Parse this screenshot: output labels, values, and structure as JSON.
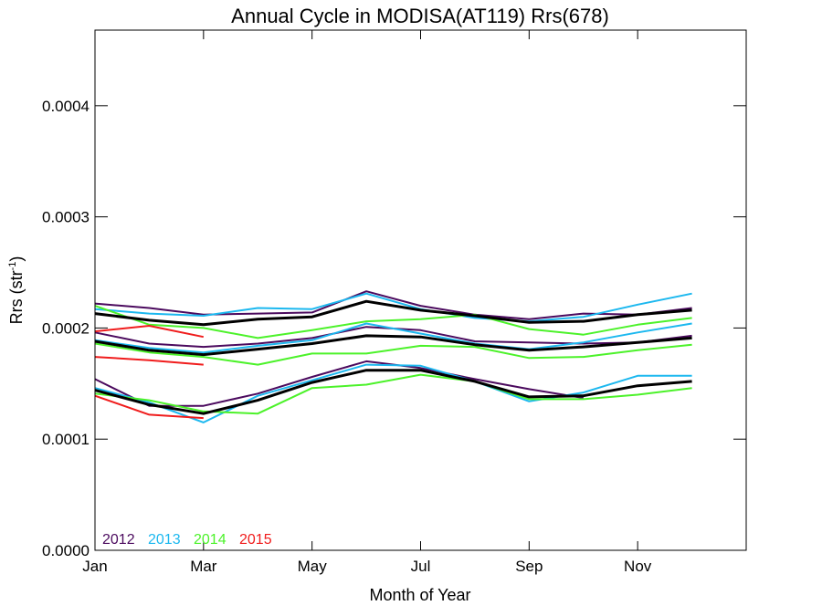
{
  "chart_data": {
    "type": "line",
    "title": "Annual Cycle in MODISA(AT119) Rrs(678)",
    "xlabel": "Month of Year",
    "ylabel": "Rrs (str",
    "ylabel_sup": "-1",
    "ylabel_close": ")",
    "xlim": [
      1,
      13
    ],
    "ylim": [
      0.0,
      0.000468
    ],
    "xticks": [
      {
        "x": 1,
        "label": "Jan"
      },
      {
        "x": 3,
        "label": "Mar"
      },
      {
        "x": 5,
        "label": "May"
      },
      {
        "x": 7,
        "label": "Jul"
      },
      {
        "x": 9,
        "label": "Sep"
      },
      {
        "x": 11,
        "label": "Nov"
      }
    ],
    "yticks": [
      {
        "y": 0.0,
        "label": "0.0000"
      },
      {
        "y": 0.0001,
        "label": "0.0001"
      },
      {
        "y": 0.0002,
        "label": "0.0002"
      },
      {
        "y": 0.0003,
        "label": "0.0003"
      },
      {
        "y": 0.0004,
        "label": "0.0004"
      }
    ],
    "legend": {
      "placement": "bottom-left",
      "entries": [
        {
          "label": "2012",
          "color": "#4b0a5e"
        },
        {
          "label": "2013",
          "color": "#1cb8ef"
        },
        {
          "label": "2014",
          "color": "#4cf22a"
        },
        {
          "label": "2015",
          "color": "#f01c1c"
        }
      ]
    },
    "series": [
      {
        "color": "#4b0a5e",
        "width": 2,
        "x": [
          1,
          2,
          3,
          4,
          5,
          6,
          7,
          8,
          9,
          10,
          11,
          12
        ],
        "y": [
          0.000222,
          0.000218,
          0.000212,
          0.000213,
          0.000214,
          0.000233,
          0.00022,
          0.000212,
          0.000208,
          0.000213,
          0.000212,
          0.000218
        ]
      },
      {
        "color": "#4b0a5e",
        "width": 2,
        "x": [
          1,
          2,
          3,
          4,
          5,
          6,
          7,
          8,
          9,
          10,
          11,
          12
        ],
        "y": [
          0.000196,
          0.000186,
          0.000183,
          0.000186,
          0.000191,
          0.000201,
          0.000198,
          0.000188,
          0.000187,
          0.000186,
          0.000187,
          0.000193
        ]
      },
      {
        "color": "#4b0a5e",
        "width": 2,
        "x": [
          1,
          2,
          3,
          4,
          5,
          6,
          7,
          8,
          9,
          10
        ],
        "y": [
          0.000154,
          0.00013,
          0.00013,
          0.000141,
          0.000156,
          0.00017,
          0.000164,
          0.000154,
          0.000145,
          0.000137
        ]
      },
      {
        "color": "#1cb8ef",
        "width": 2,
        "x": [
          1,
          2,
          3,
          4,
          5,
          6,
          7,
          8,
          9,
          10,
          11,
          12
        ],
        "y": [
          0.000217,
          0.000213,
          0.000211,
          0.000218,
          0.000217,
          0.000231,
          0.000217,
          0.000209,
          0.000206,
          0.00021,
          0.000221,
          0.000231
        ]
      },
      {
        "color": "#1cb8ef",
        "width": 2,
        "x": [
          1,
          2,
          3,
          4,
          5,
          6,
          7,
          8,
          9,
          10,
          11,
          12
        ],
        "y": [
          0.000189,
          0.000182,
          0.000178,
          0.000184,
          0.000189,
          0.000204,
          0.000195,
          0.000186,
          0.000181,
          0.000187,
          0.000196,
          0.000204
        ]
      },
      {
        "color": "#1cb8ef",
        "width": 2,
        "x": [
          1,
          2,
          3,
          4,
          5,
          6,
          7,
          8,
          9,
          10,
          11,
          12
        ],
        "y": [
          0.000146,
          0.000133,
          0.000115,
          0.000139,
          0.000153,
          0.000167,
          0.000166,
          0.000152,
          0.000134,
          0.000142,
          0.000157,
          0.000157
        ]
      },
      {
        "color": "#4cf22a",
        "width": 2,
        "x": [
          1,
          2,
          3,
          4,
          5,
          6,
          7,
          8,
          9,
          10,
          11,
          12
        ],
        "y": [
          0.00022,
          0.000203,
          0.0002,
          0.000191,
          0.000198,
          0.000206,
          0.000208,
          0.000212,
          0.000199,
          0.000194,
          0.000203,
          0.000209
        ]
      },
      {
        "color": "#4cf22a",
        "width": 2,
        "x": [
          1,
          2,
          3,
          4,
          5,
          6,
          7,
          8,
          9,
          10,
          11,
          12
        ],
        "y": [
          0.000186,
          0.000178,
          0.000174,
          0.000167,
          0.000177,
          0.000177,
          0.000184,
          0.000183,
          0.000173,
          0.000174,
          0.00018,
          0.000185
        ]
      },
      {
        "color": "#4cf22a",
        "width": 2,
        "x": [
          1,
          2,
          3,
          4,
          5,
          6,
          7,
          8,
          9,
          10,
          11,
          12
        ],
        "y": [
          0.000141,
          0.000135,
          0.000125,
          0.000123,
          0.000146,
          0.000149,
          0.000158,
          0.000152,
          0.000136,
          0.000136,
          0.00014,
          0.000146
        ]
      },
      {
        "color": "#f01c1c",
        "width": 2,
        "x": [
          1,
          2,
          3
        ],
        "y": [
          0.000197,
          0.000202,
          0.000192
        ]
      },
      {
        "color": "#f01c1c",
        "width": 2,
        "x": [
          1,
          2,
          3
        ],
        "y": [
          0.000174,
          0.000171,
          0.000167
        ]
      },
      {
        "color": "#f01c1c",
        "width": 2,
        "x": [
          1,
          2,
          3
        ],
        "y": [
          0.000139,
          0.000122,
          0.000119
        ]
      },
      {
        "color": "#000000",
        "width": 3,
        "x": [
          1,
          2,
          3,
          4,
          5,
          6,
          7,
          8,
          9,
          10,
          11,
          12
        ],
        "y": [
          0.000213,
          0.000207,
          0.000203,
          0.000208,
          0.00021,
          0.000224,
          0.000216,
          0.000211,
          0.000205,
          0.000206,
          0.000212,
          0.000216
        ]
      },
      {
        "color": "#000000",
        "width": 3,
        "x": [
          1,
          2,
          3,
          4,
          5,
          6,
          7,
          8,
          9,
          10,
          11,
          12
        ],
        "y": [
          0.000188,
          0.00018,
          0.000176,
          0.000181,
          0.000186,
          0.000193,
          0.000192,
          0.000185,
          0.00018,
          0.000183,
          0.000187,
          0.000191
        ]
      },
      {
        "color": "#000000",
        "width": 3,
        "x": [
          1,
          2,
          3,
          4,
          5,
          6,
          7,
          8,
          9,
          10,
          11,
          12
        ],
        "y": [
          0.000144,
          0.000131,
          0.000123,
          0.000135,
          0.000151,
          0.000162,
          0.000162,
          0.000152,
          0.000138,
          0.000139,
          0.000148,
          0.000152
        ]
      }
    ]
  }
}
